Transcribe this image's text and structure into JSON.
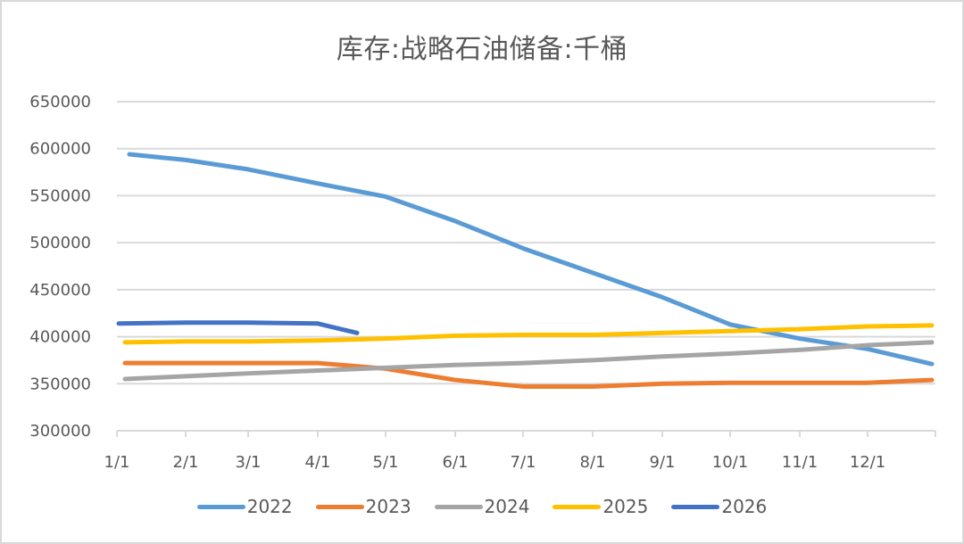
{
  "title": "库存:战略石油储备:千桶",
  "colors": {
    "2022": "#5b9bd5",
    "2023": "#ed7d31",
    "2024": "#a5a5a5",
    "2025": "#ffc000",
    "2026": "#4472c4",
    "grid": "#d9d9d9",
    "text": "#595959"
  },
  "legend": [
    {
      "label": "2022",
      "color": "#5b9bd5"
    },
    {
      "label": "2023",
      "color": "#ed7d31"
    },
    {
      "label": "2024",
      "color": "#a5a5a5"
    },
    {
      "label": "2025",
      "color": "#ffc000"
    },
    {
      "label": "2026",
      "color": "#4472c4"
    }
  ],
  "chart_data": {
    "type": "line",
    "title": "库存:战略石油储备:千桶",
    "xlabel": "",
    "ylabel": "",
    "ylim": [
      300000,
      650000
    ],
    "yticks": [
      650000,
      600000,
      550000,
      500000,
      450000,
      400000,
      350000,
      300000
    ],
    "categories": [
      "1/1",
      "2/1",
      "3/1",
      "4/1",
      "5/1",
      "6/1",
      "7/1",
      "8/1",
      "9/1",
      "10/1",
      "11/1",
      "12/1"
    ],
    "grid": true,
    "legend_position": "bottom",
    "x": [
      "1/7",
      "2/1",
      "3/1",
      "4/1",
      "5/1",
      "6/1",
      "7/1",
      "8/1",
      "9/1",
      "10/1",
      "11/1",
      "12/1",
      "12/30"
    ],
    "series": [
      {
        "name": "2022",
        "values": [
          594000,
          588000,
          578000,
          563000,
          549000,
          523000,
          494000,
          468000,
          442000,
          413000,
          398000,
          387000,
          371000
        ]
      },
      {
        "name": "2023",
        "values": [
          372000,
          372000,
          372000,
          372000,
          366000,
          354000,
          347000,
          347000,
          350000,
          351000,
          351000,
          351000,
          354000
        ]
      },
      {
        "name": "2024",
        "values": [
          355000,
          358000,
          361000,
          364000,
          367000,
          370000,
          372000,
          375000,
          379000,
          382000,
          386000,
          391000,
          394000
        ]
      },
      {
        "name": "2025",
        "values": [
          394000,
          395000,
          395000,
          396000,
          398000,
          401000,
          402000,
          402000,
          404000,
          406000,
          408000,
          411000,
          412000
        ]
      },
      {
        "name": "2026",
        "values": [
          414000,
          415000,
          415000,
          414000,
          404000,
          null,
          null,
          null,
          null,
          null,
          null,
          null,
          null
        ]
      }
    ]
  }
}
